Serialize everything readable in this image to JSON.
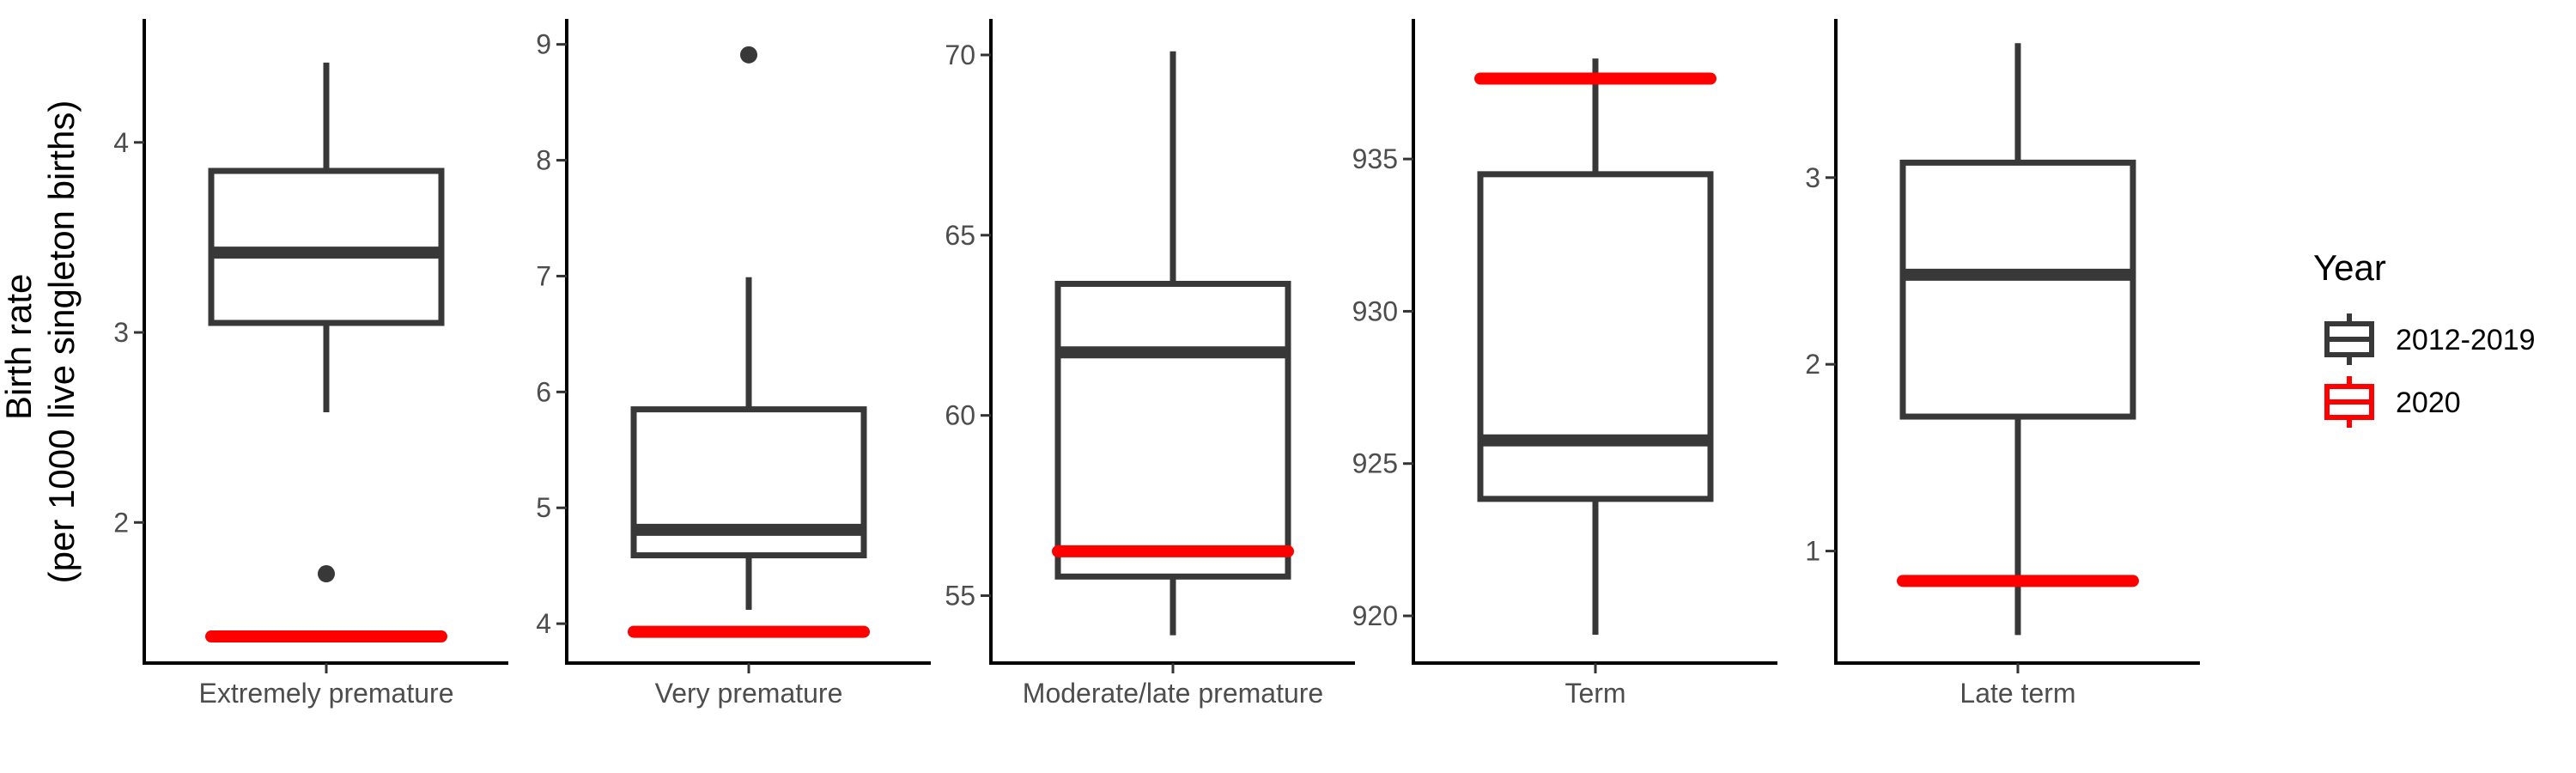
{
  "chart_data": {
    "type": "boxplot",
    "ylabel_line1": "Birth rate",
    "ylabel_line2": "(per 1000 live singleton births)",
    "legend": {
      "title": "Year",
      "position": "right",
      "entries": [
        {
          "label": "2012-2019",
          "color": "#383838"
        },
        {
          "label": "2020",
          "color": "#ff0000"
        }
      ]
    },
    "grid": false,
    "panels": [
      {
        "category": "Extremely premature",
        "ylim": [
          1.26,
          4.65
        ],
        "yticks": [
          2,
          3,
          4
        ],
        "box_2012_2019": {
          "whisker_low": 2.58,
          "q1": 3.05,
          "median": 3.42,
          "q3": 3.85,
          "whisker_high": 4.42,
          "outliers": [
            1.73
          ]
        },
        "value_2020": 1.4
      },
      {
        "category": "Very premature",
        "ylim": [
          3.66,
          9.22
        ],
        "yticks": [
          4,
          5,
          6,
          7,
          8,
          9
        ],
        "box_2012_2019": {
          "whisker_low": 4.12,
          "q1": 4.59,
          "median": 4.81,
          "q3": 5.85,
          "whisker_high": 6.99,
          "outliers": [
            8.91
          ]
        },
        "value_2020": 3.93
      },
      {
        "category": "Moderate/late premature",
        "ylim": [
          53.13,
          71.0
        ],
        "yticks": [
          55,
          60,
          65,
          70
        ],
        "box_2012_2019": {
          "whisker_low": 53.9,
          "q1": 55.53,
          "median": 61.75,
          "q3": 63.65,
          "whisker_high": 70.1,
          "outliers": []
        },
        "value_2020": 56.23
      },
      {
        "category": "Term",
        "ylim": [
          918.45,
          939.6
        ],
        "yticks": [
          920,
          925,
          930,
          935
        ],
        "box_2012_2019": {
          "whisker_low": 919.38,
          "q1": 923.84,
          "median": 925.76,
          "q3": 934.5,
          "whisker_high": 938.3,
          "outliers": []
        },
        "value_2020": 937.64
      },
      {
        "category": "Late term",
        "ylim": [
          0.4,
          3.85
        ],
        "yticks": [
          1,
          2,
          3
        ],
        "box_2012_2019": {
          "whisker_low": 0.55,
          "q1": 1.72,
          "median": 2.48,
          "q3": 3.08,
          "whisker_high": 3.72,
          "outliers": []
        },
        "value_2020": 0.84
      }
    ]
  }
}
